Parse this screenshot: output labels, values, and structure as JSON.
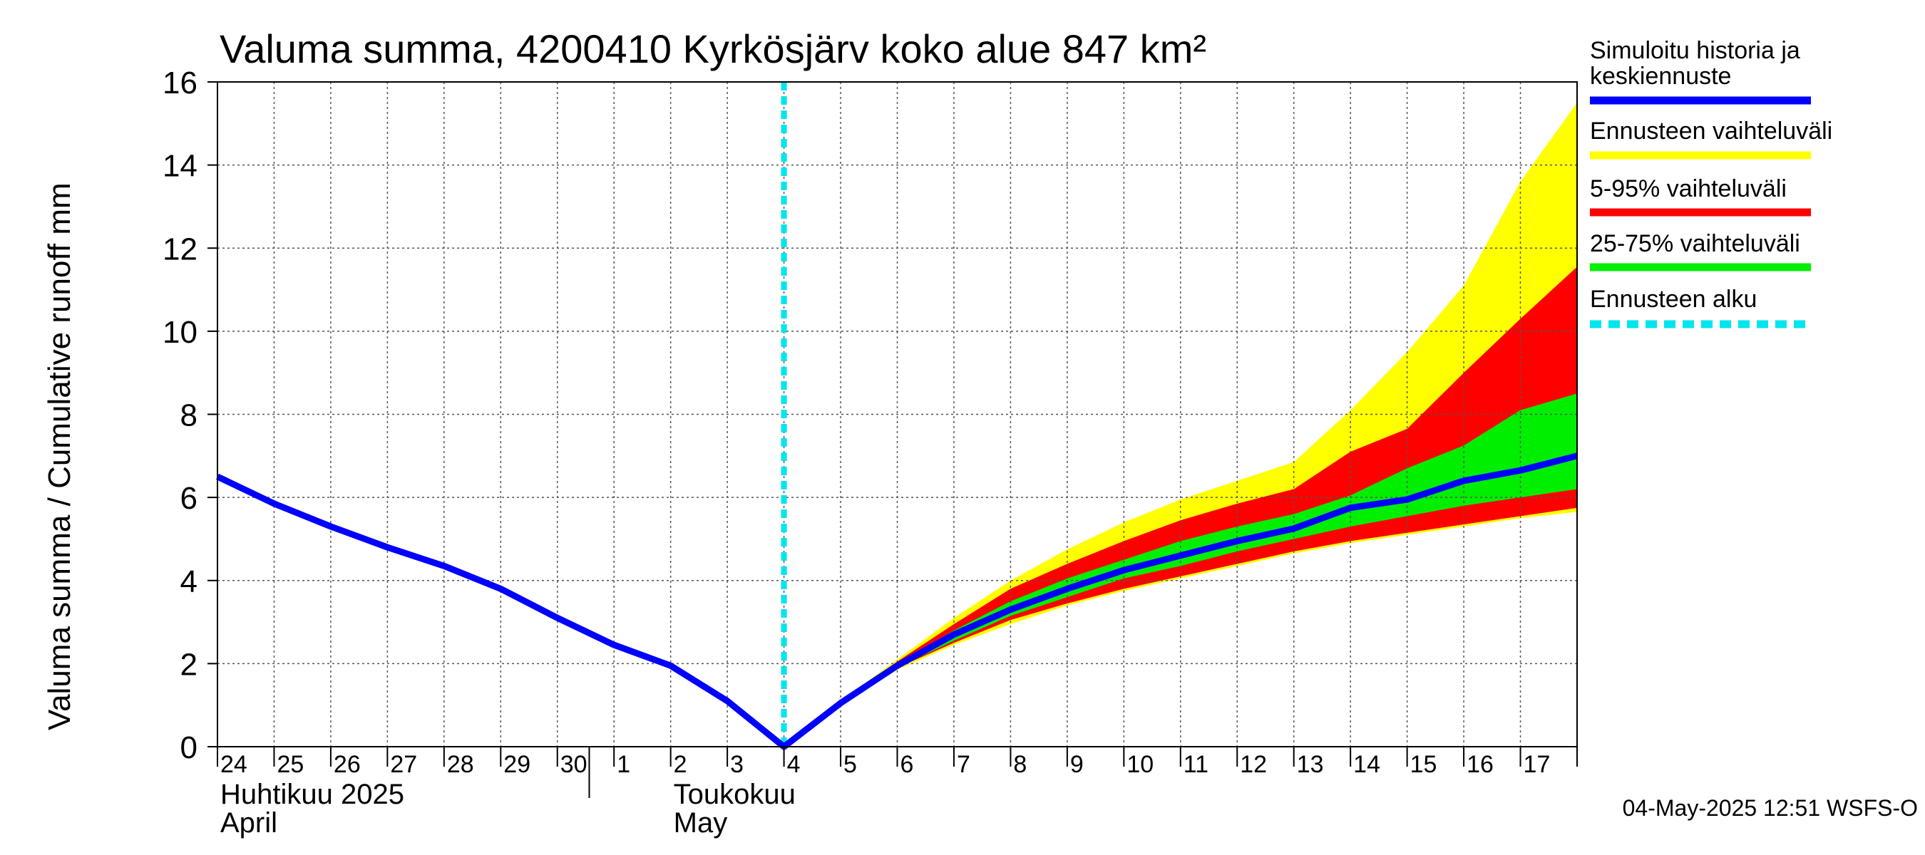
{
  "chart_data": {
    "type": "area",
    "title": "Valuma summa, 4200410 Kyrkösjärv koko alue 847 km²",
    "ylabel": "Valuma summa / Cumulative runoff    mm",
    "ylim": [
      0,
      16
    ],
    "yticks": [
      0,
      2,
      4,
      6,
      8,
      10,
      12,
      14,
      16
    ],
    "x": [
      "24",
      "25",
      "26",
      "27",
      "28",
      "29",
      "30",
      "1",
      "2",
      "3",
      "4",
      "5",
      "6",
      "7",
      "8",
      "9",
      "10",
      "11",
      "12",
      "13",
      "14",
      "15",
      "16",
      "17",
      "18"
    ],
    "x_labels": [
      "24",
      "25",
      "26",
      "27",
      "28",
      "29",
      "30",
      "1",
      "2",
      "3",
      "4",
      "5",
      "6",
      "7",
      "8",
      "9",
      "10",
      "11",
      "12",
      "13",
      "14",
      "15",
      "16",
      "17"
    ],
    "month_labels": [
      {
        "line1": "Huhtikuu  2025",
        "line2": "April",
        "at": "24"
      },
      {
        "line1": "Toukokuu",
        "line2": "May",
        "at": "2"
      }
    ],
    "forecast_start": "4",
    "grid": true,
    "legend_placement": "right",
    "series": [
      {
        "name": "Simuloitu historia ja keskiennuste",
        "type": "line",
        "color": "#0000ff",
        "x_index": [
          0,
          1,
          2,
          3,
          4,
          5,
          6,
          7,
          8,
          9,
          10,
          11,
          12,
          13,
          14,
          15,
          16,
          17,
          18,
          19,
          20,
          21,
          22,
          23,
          24
        ],
        "values": [
          6.5,
          5.85,
          5.3,
          4.8,
          4.35,
          3.8,
          3.1,
          2.45,
          1.95,
          1.1,
          0.0,
          1.05,
          1.95,
          2.7,
          3.3,
          3.8,
          4.25,
          4.6,
          4.95,
          5.25,
          5.75,
          5.95,
          6.4,
          6.65,
          7.0
        ]
      },
      {
        "name": "Ennusteen vaihteluväli",
        "type": "band",
        "color": "#ffff00",
        "x_index": [
          10,
          11,
          12,
          13,
          14,
          15,
          16,
          17,
          18,
          19,
          20,
          21,
          22,
          23,
          24
        ],
        "low": [
          0.0,
          1.0,
          1.85,
          2.45,
          2.95,
          3.4,
          3.75,
          4.05,
          4.35,
          4.65,
          4.9,
          5.1,
          5.3,
          5.5,
          5.65
        ],
        "high": [
          0.0,
          1.1,
          2.1,
          3.1,
          4.0,
          4.75,
          5.4,
          5.95,
          6.4,
          6.85,
          8.1,
          9.5,
          11.1,
          13.6,
          15.5
        ]
      },
      {
        "name": "5-95% vaihteluväli",
        "type": "band",
        "color": "#ff0000",
        "x_index": [
          10,
          11,
          12,
          13,
          14,
          15,
          16,
          17,
          18,
          19,
          20,
          21,
          22,
          23,
          24
        ],
        "low": [
          0.0,
          1.05,
          1.9,
          2.5,
          3.05,
          3.45,
          3.8,
          4.1,
          4.4,
          4.7,
          4.95,
          5.15,
          5.35,
          5.55,
          5.75
        ],
        "high": [
          0.0,
          1.08,
          2.05,
          2.95,
          3.8,
          4.4,
          4.95,
          5.45,
          5.85,
          6.2,
          7.1,
          7.65,
          9.0,
          10.3,
          11.55
        ]
      },
      {
        "name": "25-75% vaihteluväli",
        "type": "band",
        "color": "#00ee00",
        "x_index": [
          10,
          11,
          12,
          13,
          14,
          15,
          16,
          17,
          18,
          19,
          20,
          21,
          22,
          23,
          24
        ],
        "low": [
          0.0,
          1.05,
          1.9,
          2.55,
          3.15,
          3.6,
          4.05,
          4.35,
          4.7,
          5.0,
          5.3,
          5.55,
          5.8,
          6.0,
          6.2
        ],
        "high": [
          0.0,
          1.07,
          2.0,
          2.8,
          3.5,
          4.05,
          4.5,
          4.95,
          5.3,
          5.6,
          6.05,
          6.7,
          7.25,
          8.1,
          8.5
        ]
      },
      {
        "name": "Ennusteen alku",
        "type": "vline",
        "color": "#00e5ee"
      }
    ]
  },
  "legend": [
    {
      "text1": "Simuloitu historia ja",
      "text2": "keskiennuste",
      "color": "#0000ff",
      "style": "solid"
    },
    {
      "text1": "Ennusteen vaihteluväli",
      "text2": "",
      "color": "#ffff00",
      "style": "solid"
    },
    {
      "text1": "5-95% vaihteluväli",
      "text2": "",
      "color": "#ff0000",
      "style": "solid"
    },
    {
      "text1": "25-75% vaihteluväli",
      "text2": "",
      "color": "#00ee00",
      "style": "solid"
    },
    {
      "text1": "Ennusteen alku",
      "text2": "",
      "color": "#00e5ee",
      "style": "dashed"
    }
  ],
  "footer": "04-May-2025 12:51 WSFS-O"
}
